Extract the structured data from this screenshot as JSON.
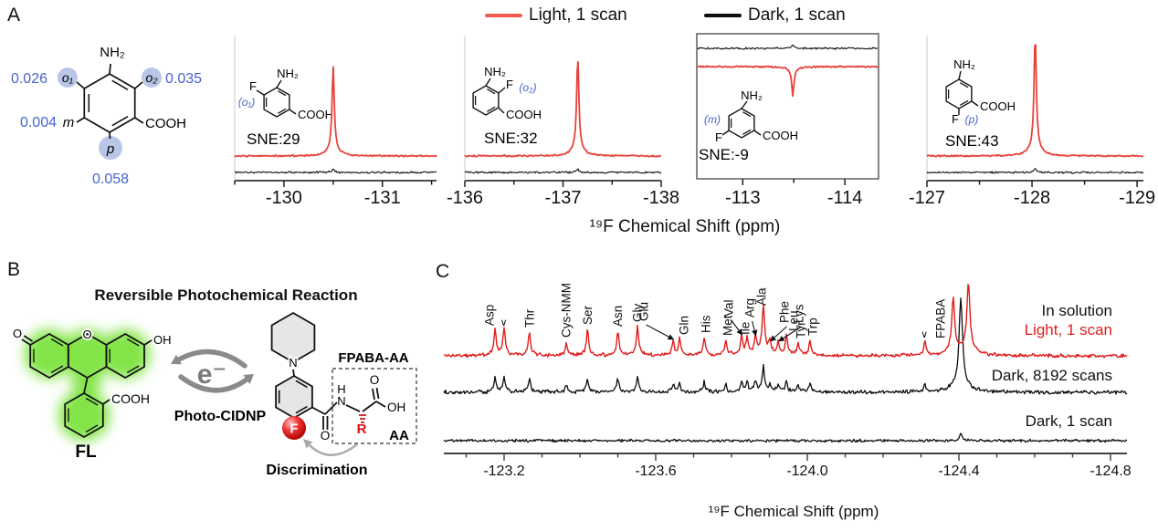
{
  "panel_labels": {
    "a": "A",
    "b": "B",
    "c": "C"
  },
  "colors": {
    "red_a": "#e8423a",
    "red_c": "#e11c1c",
    "black": "#0d0d0d",
    "blue": "#4563cf",
    "blue_circle": "#b9c6e8",
    "gray_arrow": "#8a8a8a",
    "green_glow": "#7ce33e",
    "ring_fill": "#e6e6e6"
  },
  "legend": {
    "light": "Light, 1 scan",
    "dark": "Dark, 1 scan"
  },
  "atoms": {
    "nh2": "NH₂",
    "cooh": "COOH",
    "f": "F",
    "o": "O",
    "oh": "OH",
    "n": "N",
    "h": "H",
    "r": "R",
    "e": "e⁻"
  },
  "panelA": {
    "axis_label": "¹⁹F Chemical Shift (ppm)",
    "molecule": {
      "labels": {
        "o1": "o₁",
        "o2": "o₂",
        "m": "m",
        "p": "p"
      },
      "values": {
        "o1": "0.026",
        "o2": "0.035",
        "m": "0.004",
        "p": "0.058"
      }
    }
  },
  "panelB": {
    "title": "Reversible Photochemical Reaction",
    "fl": "FL",
    "photo": "Photo-CIDNP",
    "fpaba_aa": "FPABA-AA",
    "aa": "AA",
    "discrimination": "Discrimination"
  },
  "panelC": {
    "labels": {
      "in_solution": "In solution",
      "light": "Light, 1 scan",
      "dark8192": "Dark, 8192 scans",
      "dark1": "Dark, 1 scan"
    },
    "axis_label": "¹⁹F Chemical Shift (ppm)",
    "marker_char": "∨"
  },
  "chart_data": [
    {
      "type": "line",
      "panel": "A1",
      "position_label": "(o₁)",
      "sne": 29,
      "sne_label": "SNE:29",
      "xlabel": "¹⁹F Chemical Shift (ppm)",
      "series": [
        "Light, 1 scan",
        "Dark, 1 scan"
      ],
      "xlim": [
        -129.5,
        -131.55
      ],
      "minor_step": 0.5,
      "ticks": [
        {
          "v": -130,
          "label": "-130"
        },
        {
          "v": -131,
          "label": "-131"
        }
      ],
      "peak_ppm": -130.5,
      "light_peak_h": 91,
      "dark_peak_h": 4
    },
    {
      "type": "line",
      "panel": "A2",
      "position_label": "(o₂)",
      "sne": 32,
      "sne_label": "SNE:32",
      "xlabel": "¹⁹F Chemical Shift (ppm)",
      "series": [
        "Light, 1 scan",
        "Dark, 1 scan"
      ],
      "xlim": [
        -136.0,
        -138.0
      ],
      "minor_step": 0.5,
      "ticks": [
        {
          "v": -136,
          "label": "-136"
        },
        {
          "v": -137,
          "label": "-137"
        },
        {
          "v": -138,
          "label": "-138"
        }
      ],
      "peak_ppm": -137.15,
      "light_peak_h": 101,
      "dark_peak_h": 4
    },
    {
      "type": "line",
      "panel": "A3",
      "position_label": "(m)",
      "sne": -9,
      "sne_label": "SNE:-9",
      "xlabel": "¹⁹F Chemical Shift (ppm)",
      "series": [
        "Light, 1 scan",
        "Dark, 1 scan"
      ],
      "boxed": true,
      "xlim": [
        -112.55,
        -114.33
      ],
      "minor_step": 0.5,
      "ticks": [
        {
          "v": -113,
          "label": "-113"
        },
        {
          "v": -114,
          "label": "-114"
        }
      ],
      "peak_ppm": -113.49,
      "light_peak_h": -29,
      "dark_peak_h": 3
    },
    {
      "type": "line",
      "panel": "A4",
      "position_label": "(p)",
      "sne": 43,
      "sne_label": "SNE:43",
      "xlabel": "¹⁹F Chemical Shift (ppm)",
      "series": [
        "Light, 1 scan",
        "Dark, 1 scan"
      ],
      "xlim": [
        -127.0,
        -129.06
      ],
      "minor_step": 0.5,
      "ticks": [
        {
          "v": -127,
          "label": "-127"
        },
        {
          "v": -128,
          "label": "-128"
        },
        {
          "v": -129,
          "label": "-129"
        }
      ],
      "peak_ppm": -128.03,
      "light_peak_h": 124,
      "dark_peak_h": 4
    },
    {
      "type": "line",
      "panel": "C",
      "xlabel": "¹⁹F Chemical Shift (ppm)",
      "series": [
        "In solution Light, 1 scan",
        "Dark, 8192 scans",
        "Dark, 1 scan"
      ],
      "xlim": [
        -123.04,
        -124.84
      ],
      "minor_step": 0.1,
      "ticks": [
        {
          "v": -123.2,
          "label": "-123.2"
        },
        {
          "v": -123.6,
          "label": "-123.6"
        },
        {
          "v": -124.0,
          "label": "-124.0"
        },
        {
          "v": -124.4,
          "label": "-124.4"
        },
        {
          "v": -124.8,
          "label": "-124.8"
        }
      ],
      "dark8192_scale": 0.55,
      "fpaba_8192": {
        "ppm": -124.405,
        "i": 95
      },
      "dark1_peak": {
        "ppm": -124.405,
        "i": 7
      },
      "peaks": [
        {
          "label": "Asp",
          "ppm": -123.176,
          "i": 26,
          "ldx": -6
        },
        {
          "marker": true,
          "ppm": -123.2,
          "i": 28
        },
        {
          "label": "Thr",
          "ppm": -123.267,
          "i": 24
        },
        {
          "label": "Cys-NMM",
          "ppm": -123.364,
          "i": 13
        },
        {
          "label": "Ser",
          "ppm": -123.42,
          "i": 27
        },
        {
          "label": "Asn",
          "ppm": -123.5,
          "i": 25
        },
        {
          "label": "Gly",
          "ppm": -123.552,
          "i": 30
        },
        {
          "label": "Glu",
          "ppm": -123.646,
          "i": 14,
          "arrow": true,
          "ldx": -32
        },
        {
          "label": "Gln",
          "ppm": -123.663,
          "i": 16,
          "ldx": 5
        },
        {
          "label": "His",
          "ppm": -123.728,
          "i": 18,
          "ldx": 2
        },
        {
          "label": "Met",
          "ppm": -123.785,
          "i": 15,
          "ldx": 2
        },
        {
          "label": "Val",
          "ppm": -123.827,
          "i": 19,
          "arrow": true,
          "ldx": -14
        },
        {
          "label": "Ile",
          "ppm": -123.841,
          "i": 16,
          "ldx": -2
        },
        {
          "label": "Arg",
          "ppm": -123.863,
          "i": 18,
          "arrow": true,
          "ldx": -6
        },
        {
          "label": "Ala",
          "ppm": -123.884,
          "i": 48,
          "w": 1.6,
          "ldx": -2
        },
        {
          "label": "Phe",
          "ppm": -123.901,
          "i": 12,
          "arrow": true,
          "ldx": 16
        },
        {
          "label": "Lys",
          "ppm": -123.923,
          "i": 12,
          "arrow": true,
          "ldx": 23
        },
        {
          "label": "Leu",
          "ppm": -123.945,
          "i": 20,
          "ldx": 8
        },
        {
          "label": "Tyr",
          "ppm": -123.976,
          "i": 12,
          "ldx": 3
        },
        {
          "label": "Trp",
          "ppm": -124.007,
          "i": 15,
          "ldx": 3
        },
        {
          "marker": true,
          "ppm": -124.31,
          "i": 15
        },
        {
          "label": "FPABA",
          "ppm": -124.385,
          "i": 58,
          "w": 1.8,
          "ldx": -14,
          "fpaba": true
        },
        {
          "ppm": -124.425,
          "i": 72,
          "w": 2.0,
          "fpaba": true
        }
      ]
    }
  ]
}
